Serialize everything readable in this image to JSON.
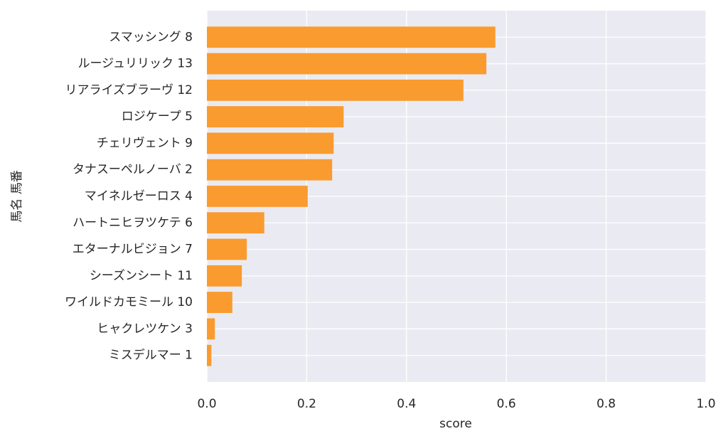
{
  "chart_data": {
    "type": "barh",
    "categories": [
      "スマッシング 8",
      "ルージュリリック 13",
      "リアライズブラーヴ 12",
      "ロジケープ 5",
      "チェリヴェント 9",
      "タナスーペルノーバ 2",
      "マイネルゼーロス 4",
      "ハートニヒヲツケテ 6",
      "エターナルビジョン 7",
      "シーズンシート 11",
      "ワイルドカモミール 10",
      "ヒャクレツケン 3",
      "ミスデルマー 1"
    ],
    "values": [
      0.578,
      0.56,
      0.514,
      0.274,
      0.254,
      0.251,
      0.202,
      0.115,
      0.08,
      0.07,
      0.051,
      0.016,
      0.009
    ],
    "color": "#f99b2f",
    "xlabel": "score",
    "ylabel": "馬名 馬番",
    "xlim": [
      0,
      1
    ],
    "xticks": [
      {
        "value": 0,
        "label": "0.0"
      },
      {
        "value": 0.2,
        "label": "0.2"
      },
      {
        "value": 0.4,
        "label": "0.4"
      },
      {
        "value": 0.6,
        "label": "0.6"
      },
      {
        "value": 0.8,
        "label": "0.8"
      },
      {
        "value": 1,
        "label": "1.0"
      }
    ],
    "grid": true
  }
}
